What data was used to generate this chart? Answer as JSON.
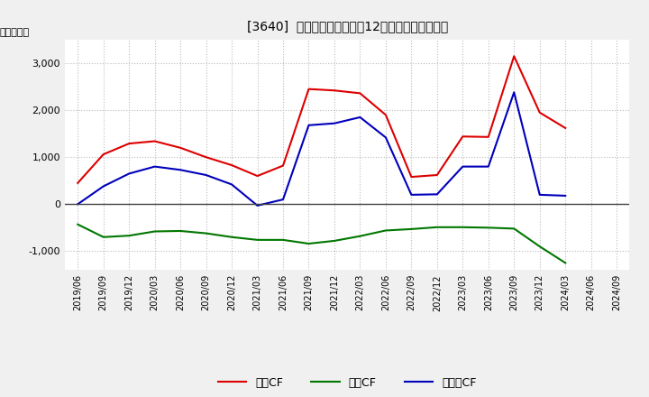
{
  "title": "[3640]  キャッシュフローの12か月移動合計の推移",
  "ylabel": "（百万円）",
  "ylim": [
    -1400,
    3500
  ],
  "yticks": [
    -1000,
    0,
    1000,
    2000,
    3000
  ],
  "x_labels": [
    "2019/06",
    "2019/09",
    "2019/12",
    "2020/03",
    "2020/06",
    "2020/09",
    "2020/12",
    "2021/03",
    "2021/06",
    "2021/09",
    "2021/12",
    "2022/03",
    "2022/06",
    "2022/09",
    "2022/12",
    "2023/03",
    "2023/06",
    "2023/09",
    "2023/12",
    "2024/03",
    "2024/06",
    "2024/09"
  ],
  "eigyo_cf": [
    450,
    1060,
    1290,
    1340,
    1200,
    1000,
    830,
    600,
    820,
    2450,
    2420,
    2360,
    1900,
    580,
    620,
    1440,
    1430,
    3150,
    1950,
    1620,
    null,
    null
  ],
  "toshi_cf": [
    -430,
    -700,
    -670,
    -580,
    -570,
    -620,
    -700,
    -760,
    -760,
    -840,
    -780,
    -680,
    -560,
    -530,
    -490,
    -490,
    -500,
    -520,
    -900,
    -1250,
    null,
    null
  ],
  "free_cf": [
    0,
    380,
    650,
    800,
    730,
    620,
    420,
    -30,
    100,
    1680,
    1720,
    1850,
    1420,
    200,
    210,
    800,
    800,
    2380,
    200,
    180,
    null,
    null
  ],
  "eigyo_color": "#dd0000",
  "toshi_color": "#007700",
  "free_color": "#0000bb",
  "bg_color": "#f0f0f0",
  "plot_bg_color": "#ffffff",
  "grid_color": "#bbbbbb",
  "zero_line_color": "#444444",
  "legend_labels": [
    "営業CF",
    "投資CF",
    "フリーCF"
  ]
}
